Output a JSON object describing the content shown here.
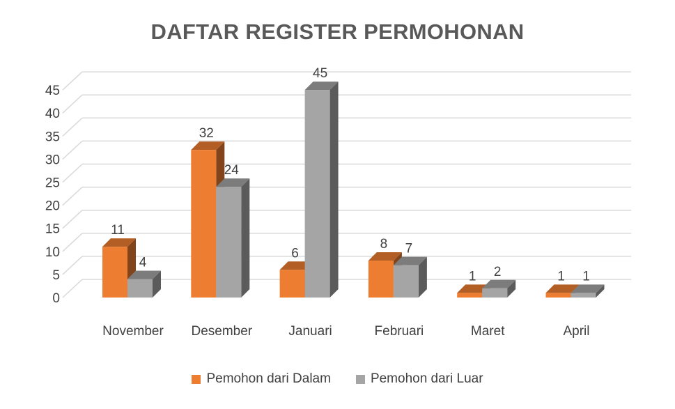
{
  "chart_data": {
    "type": "bar",
    "title": "DAFTAR REGISTER PERMOHONAN",
    "categories": [
      "November",
      "Desember",
      "Januari",
      "Februari",
      "Maret",
      "April"
    ],
    "series": [
      {
        "name": "Pemohon dari Dalam",
        "values": [
          11,
          32,
          6,
          8,
          1,
          1
        ],
        "color": "#ED7D31"
      },
      {
        "name": "Pemohon dari Luar",
        "values": [
          4,
          24,
          45,
          7,
          2,
          1
        ],
        "color": "#A5A5A5"
      }
    ],
    "yticks": [
      "0",
      "5",
      "10",
      "15",
      "20",
      "25",
      "30",
      "35",
      "40",
      "45"
    ],
    "ylim": [
      0,
      45
    ],
    "grid": true,
    "style": "3d-clustered-column",
    "legend_position": "bottom",
    "data_labels": true
  }
}
